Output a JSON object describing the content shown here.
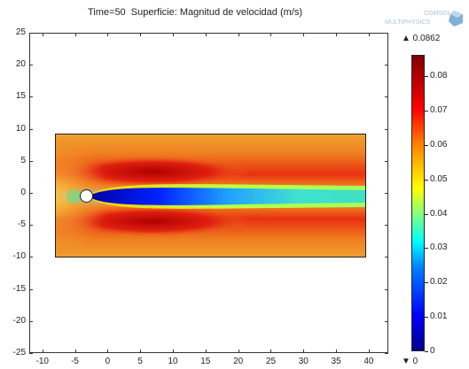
{
  "title": "Time=50  Superficie: Magnitud de velocidad (m/s)",
  "logo": {
    "line1": "COMSOL",
    "line2": "MULTIPHYSICS"
  },
  "chart_data": {
    "type": "heatmap",
    "title": "Time=50  Superficie: Magnitud de velocidad (m/s)",
    "xlim": [
      -12,
      43
    ],
    "ylim": [
      -25,
      25
    ],
    "x_ticks": [
      -10,
      -5,
      0,
      5,
      10,
      15,
      20,
      25,
      30,
      35,
      40
    ],
    "y_ticks": [
      25,
      20,
      15,
      10,
      5,
      0,
      -5,
      -10,
      -15,
      -20,
      -25
    ],
    "domain_rect": {
      "x": [
        -10,
        40
      ],
      "y": [
        -10,
        10
      ]
    },
    "obstacle": {
      "shape": "circle",
      "cx": -5,
      "cy": 0,
      "r": 0.8
    },
    "colorbar": {
      "max": "▲ 0.0862",
      "min": "▼ 0",
      "ticks": [
        "0.08",
        "0.07",
        "0.06",
        "0.05",
        "0.04",
        "0.03",
        "0.02",
        "0.01",
        "0"
      ],
      "tick_values": [
        0.08,
        0.07,
        0.06,
        0.05,
        0.04,
        0.03,
        0.02,
        0.01,
        0
      ],
      "range": [
        0,
        0.0862
      ],
      "colormap": "jet"
    }
  }
}
